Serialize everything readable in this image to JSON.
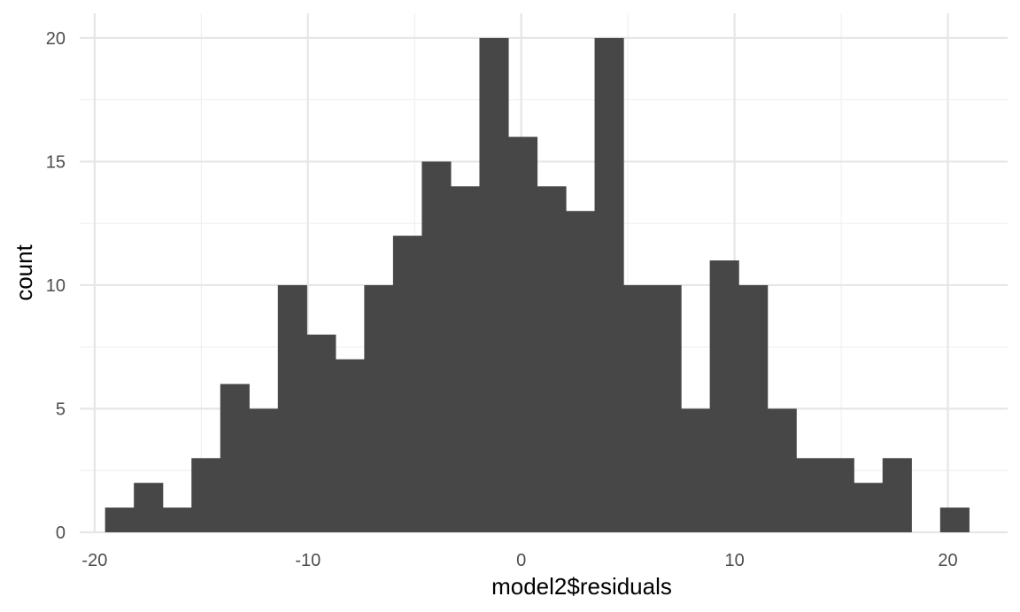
{
  "chart_data": {
    "type": "bar",
    "title": "",
    "xlabel": "model2$residuals",
    "ylabel": "count",
    "xlim": [
      -20.7,
      22.8
    ],
    "ylim": [
      0,
      21
    ],
    "x_breaks_major": [
      -20,
      -10,
      0,
      10,
      20
    ],
    "x_breaks_minor": [
      -15,
      -5,
      5,
      15
    ],
    "y_breaks_major": [
      0,
      5,
      10,
      15,
      20
    ],
    "y_breaks_minor": [
      2.5,
      7.5,
      12.5,
      17.5
    ],
    "x_tick_labels": [
      "-20",
      "-10",
      "0",
      "10",
      "20"
    ],
    "y_tick_labels": [
      "0",
      "5",
      "10",
      "15",
      "20"
    ],
    "grid": true,
    "bin_start": -19.51,
    "bin_width": 1.3499,
    "values": [
      1,
      2,
      1,
      3,
      6,
      5,
      10,
      8,
      7,
      10,
      12,
      15,
      14,
      20,
      16,
      14,
      13,
      20,
      10,
      10,
      5,
      11,
      10,
      5,
      3,
      3,
      2,
      3,
      0,
      1
    ],
    "colors": {
      "bar": "#474747",
      "grid_major": "#e6e6e6",
      "grid_minor": "#f0f0f0"
    }
  }
}
